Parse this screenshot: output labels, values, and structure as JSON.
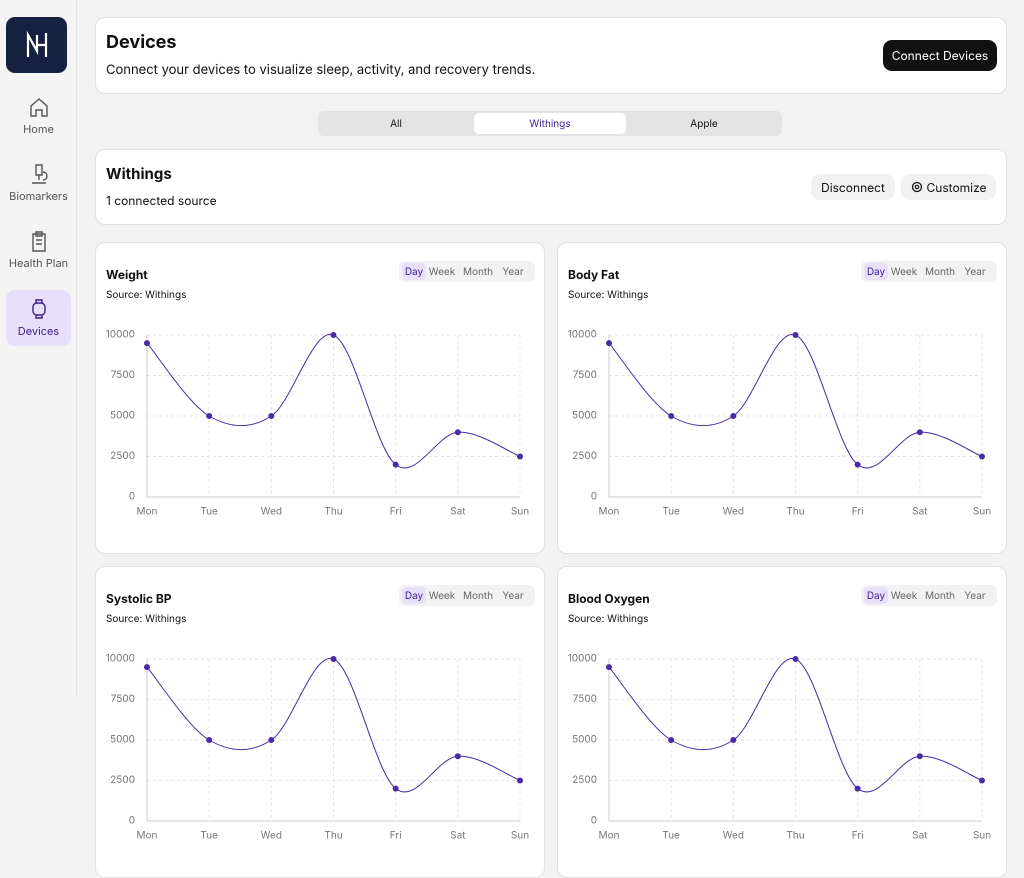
{
  "sidebar": {
    "nav": [
      {
        "label": "Home"
      },
      {
        "label": "Biomarkers"
      },
      {
        "label": "Health Plan"
      },
      {
        "label": "Devices"
      }
    ]
  },
  "header": {
    "title": "Devices",
    "subtitle": "Connect your devices to visualize sleep, activity, and recovery trends.",
    "button": "Connect Devices"
  },
  "tabs": [
    "All",
    "Withings",
    "Apple"
  ],
  "source_panel": {
    "title": "Withings",
    "subtitle": "1 connected source",
    "buttons": [
      "Disconnect",
      "Customize"
    ]
  },
  "cards": [
    {
      "title": "Weight",
      "source": "Source: Withings",
      "periods": [
        "Day",
        "Week",
        "Month",
        "Year"
      ],
      "chart_data": {
        "type": "line",
        "categories": [
          "Mon",
          "Tue",
          "Wed",
          "Thu",
          "Fri",
          "Sat",
          "Sun"
        ],
        "values": [
          9500,
          5000,
          5000,
          10000,
          2000,
          4000,
          2500
        ],
        "color": "#4a2aa6",
        "ylim": [
          0,
          10000
        ],
        "yticks": [
          0,
          2500,
          5000,
          7500,
          10000
        ],
        "grid": true
      }
    },
    {
      "title": "Body Fat",
      "source": "Source: Withings",
      "periods": [
        "Day",
        "Week",
        "Month",
        "Year"
      ],
      "chart_data": {
        "type": "line",
        "categories": [
          "Mon",
          "Tue",
          "Wed",
          "Thu",
          "Fri",
          "Sat",
          "Sun"
        ],
        "values": [
          9500,
          5000,
          5000,
          10000,
          2000,
          4000,
          2500
        ],
        "color": "#4a2aa6",
        "ylim": [
          0,
          10000
        ],
        "yticks": [
          0,
          2500,
          5000,
          7500,
          10000
        ],
        "grid": true
      }
    },
    {
      "title": "Systolic BP",
      "source": "Source: Withings",
      "periods": [
        "Day",
        "Week",
        "Month",
        "Year"
      ],
      "chart_data": {
        "type": "line",
        "categories": [
          "Mon",
          "Tue",
          "Wed",
          "Thu",
          "Fri",
          "Sat",
          "Sun"
        ],
        "values": [
          9500,
          5000,
          5000,
          10000,
          2000,
          4000,
          2500
        ],
        "color": "#4a2aa6",
        "ylim": [
          0,
          10000
        ],
        "yticks": [
          0,
          2500,
          5000,
          7500,
          10000
        ],
        "grid": true
      }
    },
    {
      "title": "Blood Oxygen",
      "source": "Source: Withings",
      "periods": [
        "Day",
        "Week",
        "Month",
        "Year"
      ],
      "chart_data": {
        "type": "line",
        "categories": [
          "Mon",
          "Tue",
          "Wed",
          "Thu",
          "Fri",
          "Sat",
          "Sun"
        ],
        "values": [
          9500,
          5000,
          5000,
          10000,
          2000,
          4000,
          2500
        ],
        "color": "#4a2aa6",
        "ylim": [
          0,
          10000
        ],
        "yticks": [
          0,
          2500,
          5000,
          7500,
          10000
        ],
        "grid": true
      }
    }
  ]
}
